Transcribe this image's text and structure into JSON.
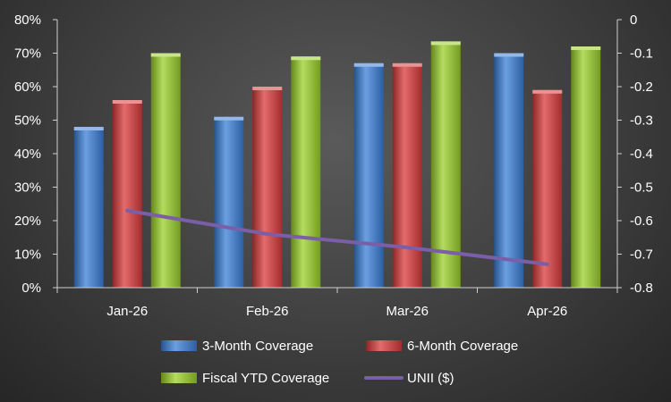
{
  "chart_data": {
    "type": "bar",
    "categories": [
      "Jan-26",
      "Feb-26",
      "Mar-26",
      "Apr-26"
    ],
    "series": [
      {
        "name": "3-Month Coverage",
        "type": "bar",
        "axis": "left",
        "color": "#3a7fd8",
        "values": [
          48,
          51,
          67,
          70
        ]
      },
      {
        "name": "6-Month Coverage",
        "type": "bar",
        "axis": "left",
        "color": "#d93a3a",
        "values": [
          56,
          60,
          67,
          59
        ]
      },
      {
        "name": "Fiscal YTD Coverage",
        "type": "bar",
        "axis": "left",
        "color": "#9bd02a",
        "values": [
          70,
          69,
          73.5,
          72
        ]
      },
      {
        "name": "UNII ($)",
        "type": "line",
        "axis": "right",
        "color": "#7b5ea8",
        "values": [
          -0.57,
          -0.64,
          -0.68,
          -0.73
        ]
      }
    ],
    "left_axis": {
      "min": 0,
      "max": 80,
      "step": 10,
      "ticks": [
        "0%",
        "10%",
        "20%",
        "30%",
        "40%",
        "50%",
        "60%",
        "70%",
        "80%"
      ]
    },
    "right_axis": {
      "min": -0.8,
      "max": 0,
      "step": 0.1,
      "ticks": [
        "-0.8",
        "-0.7",
        "-0.6",
        "-0.5",
        "-0.4",
        "-0.3",
        "-0.2",
        "-0.1",
        "0"
      ]
    },
    "grid": false,
    "legend_position": "bottom"
  }
}
